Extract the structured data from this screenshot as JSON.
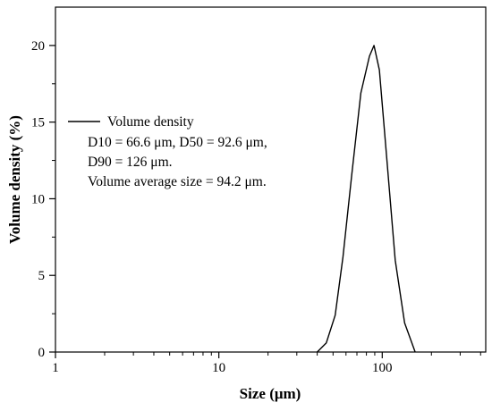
{
  "chart_data": {
    "type": "line",
    "xlabel": "Size (μm)",
    "ylabel": "Volume density (%)",
    "x_scale": "log",
    "xlim": [
      1,
      430
    ],
    "ylim": [
      0,
      22.5
    ],
    "x_ticks": [
      {
        "value": 1,
        "label": "1"
      },
      {
        "value": 10,
        "label": "10"
      },
      {
        "value": 100,
        "label": "100"
      }
    ],
    "y_ticks": [
      {
        "value": 0,
        "label": "0"
      },
      {
        "value": 5,
        "label": "5"
      },
      {
        "value": 10,
        "label": "10"
      },
      {
        "value": 15,
        "label": "15"
      },
      {
        "value": 20,
        "label": "20"
      }
    ],
    "grid": false,
    "legend_position": "upper-left",
    "series": [
      {
        "name": "Volume density",
        "color": "#000000",
        "x": [
          40,
          45.5,
          51.5,
          57.5,
          65,
          74,
          83.5,
          89,
          96,
          107,
          120,
          137,
          159
        ],
        "y": [
          0,
          0.6,
          2.4,
          6.2,
          11.5,
          16.9,
          19.3,
          20.0,
          18.4,
          12.4,
          6.0,
          1.9,
          0
        ]
      }
    ],
    "annotations": [
      "D10 = 66.6 μm, D50 = 92.6 μm,",
      "D90 = 126 μm.",
      "Volume average size = 94.2 μm."
    ]
  }
}
